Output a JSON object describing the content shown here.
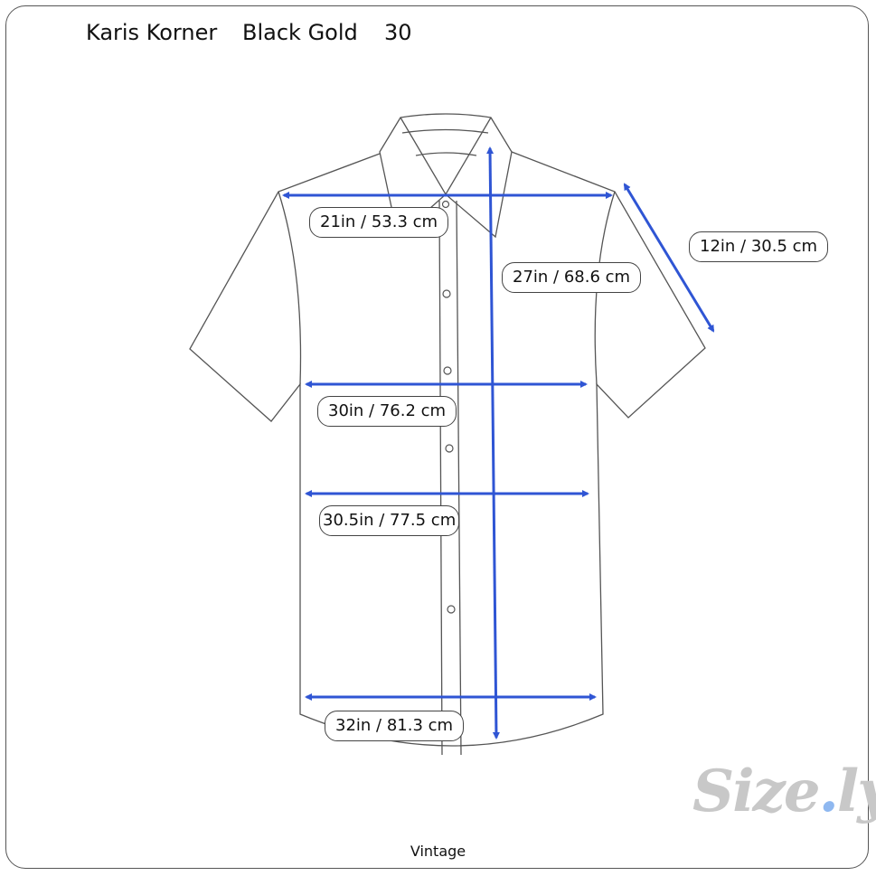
{
  "header": {
    "brand": "Karis Korner",
    "color": "Black Gold",
    "size": "30"
  },
  "measurements": {
    "chest_width": "21in / 53.3 cm",
    "sleeve": "12in / 30.5 cm",
    "length": "27in / 68.6 cm",
    "waist": "30in / 76.2 cm",
    "hip": "30.5in / 77.5 cm",
    "hem": "32in / 81.3 cm"
  },
  "footer": {
    "label": "Vintage"
  },
  "logo": {
    "text": "Size.ly"
  },
  "colors": {
    "arrow": "#2f55d4",
    "outline": "#555555",
    "logo": "#c8c8c8",
    "logo_dot": "#8fb8f0"
  }
}
